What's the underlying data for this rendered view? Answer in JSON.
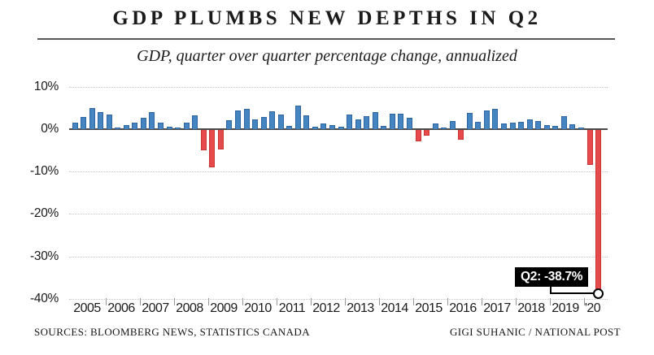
{
  "footer": {
    "sources": "SOURCES: BLOOMBERG NEWS, STATISTICS CANADA",
    "credit": "GIGI SUHANIC / NATIONAL POST"
  },
  "colors": {
    "positive_bar": "#4484C1",
    "negative_bar": "#E64A4A",
    "axis_line": "#4a4a4a",
    "gridline": "#c6c6c6",
    "annotation_bg": "#000000",
    "annotation_text": "#ffffff"
  },
  "chart_data": {
    "type": "bar",
    "title": "GDP PLUMBS NEW DEPTHS IN Q2",
    "subtitle": "GDP, quarter over quarter percentage change, annualized",
    "unit": "%",
    "x": [
      "2005Q1",
      "2005Q2",
      "2005Q3",
      "2005Q4",
      "2006Q1",
      "2006Q2",
      "2006Q3",
      "2006Q4",
      "2007Q1",
      "2007Q2",
      "2007Q3",
      "2007Q4",
      "2008Q1",
      "2008Q2",
      "2008Q3",
      "2008Q4",
      "2009Q1",
      "2009Q2",
      "2009Q3",
      "2009Q4",
      "2010Q1",
      "2010Q2",
      "2010Q3",
      "2010Q4",
      "2011Q1",
      "2011Q2",
      "2011Q3",
      "2011Q4",
      "2012Q1",
      "2012Q2",
      "2012Q3",
      "2012Q4",
      "2013Q1",
      "2013Q2",
      "2013Q3",
      "2013Q4",
      "2014Q1",
      "2014Q2",
      "2014Q3",
      "2014Q4",
      "2015Q1",
      "2015Q2",
      "2015Q3",
      "2015Q4",
      "2016Q1",
      "2016Q2",
      "2016Q3",
      "2016Q4",
      "2017Q1",
      "2017Q2",
      "2017Q3",
      "2017Q4",
      "2018Q1",
      "2018Q2",
      "2018Q3",
      "2018Q4",
      "2019Q1",
      "2019Q2",
      "2019Q3",
      "2019Q4",
      "2020Q1",
      "2020Q2"
    ],
    "values": [
      1.6,
      2.9,
      4.9,
      4.1,
      3.4,
      0.4,
      0.9,
      1.5,
      2.6,
      4.0,
      1.6,
      0.5,
      0.4,
      1.6,
      3.2,
      -4.8,
      -8.9,
      -4.6,
      2.1,
      4.4,
      4.7,
      2.3,
      2.8,
      4.2,
      3.4,
      0.8,
      5.5,
      3.2,
      0.6,
      1.3,
      1.0,
      0.6,
      3.4,
      2.3,
      3.1,
      4.0,
      0.8,
      3.6,
      3.7,
      2.6,
      -2.6,
      -1.4,
      1.3,
      0.3,
      1.9,
      -2.3,
      3.9,
      1.7,
      4.5,
      4.7,
      1.3,
      1.5,
      1.7,
      2.3,
      2.0,
      1.0,
      0.8,
      3.0,
      1.2,
      0.4,
      -8.3,
      -38.7
    ],
    "x_axis": {
      "year_labels": [
        "2005",
        "2006",
        "2007",
        "2008",
        "2009",
        "2010",
        "2011",
        "2012",
        "2013",
        "2014",
        "2015",
        "2016",
        "2017",
        "2018",
        "2019",
        "'20"
      ]
    },
    "y_axis": {
      "ticks": [
        {
          "label": "10%",
          "value": 10
        },
        {
          "label": "0%",
          "value": 0
        },
        {
          "label": "-10%",
          "value": -10
        },
        {
          "label": "-20%",
          "value": -20
        },
        {
          "label": "-30%",
          "value": -30
        },
        {
          "label": "-40%",
          "value": -40
        }
      ],
      "range": [
        -40,
        10
      ],
      "grid": "dotted"
    },
    "annotation": {
      "label": "Q2: -38.7%",
      "points_to": "2020Q2",
      "value": -38.7
    },
    "legend": null
  }
}
